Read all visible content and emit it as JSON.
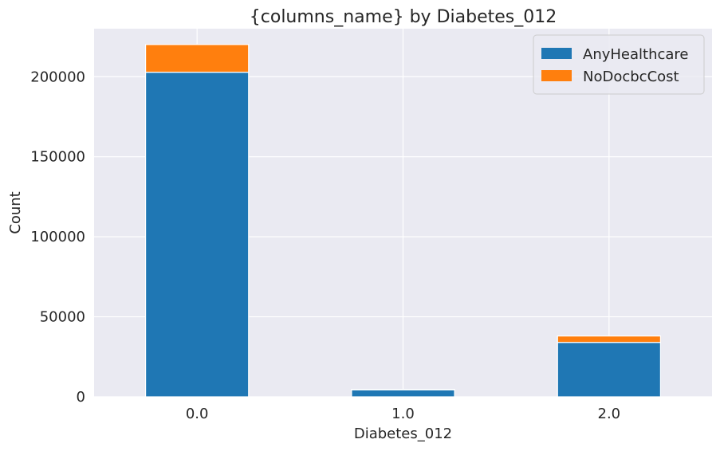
{
  "chart_data": {
    "type": "bar",
    "stacked": true,
    "title": "{columns_name} by Diabetes_012",
    "xlabel": "Diabetes_012",
    "ylabel": "Count",
    "categories": [
      "0.0",
      "1.0",
      "2.0"
    ],
    "series": [
      {
        "name": "AnyHealthcare",
        "values": [
          202800,
          4400,
          34000
        ],
        "color": "#1f77b4"
      },
      {
        "name": "NoDocbcCost",
        "values": [
          17300,
          300,
          4000
        ],
        "color": "#ff7f0e"
      }
    ],
    "ylim": [
      0,
      230000
    ],
    "yticks": [
      0,
      50000,
      100000,
      150000,
      200000
    ],
    "ytick_labels": [
      "0",
      "50000",
      "100000",
      "150000",
      "200000"
    ],
    "grid": true,
    "legend_position": "top-right",
    "colors": {
      "plot_background": "#eaeaf2",
      "grid": "#ffffff",
      "text": "#262626"
    }
  }
}
